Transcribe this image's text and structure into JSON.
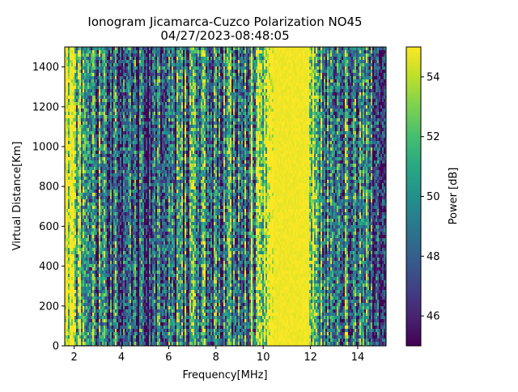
{
  "chart_data": {
    "type": "heatmap",
    "title": "Ionogram Jicamarca-Cuzco Polarization NO45",
    "subtitle": "04/27/2023-08:48:05",
    "xlabel": "Frequency[MHz]",
    "ylabel": "Virtual Distance[Km]",
    "xlim": [
      1.6,
      15.2
    ],
    "ylim": [
      0,
      1500
    ],
    "x_ticks": [
      2,
      4,
      6,
      8,
      10,
      12,
      14
    ],
    "y_ticks": [
      0,
      200,
      400,
      600,
      800,
      1000,
      1200,
      1400
    ],
    "colorbar": {
      "label": "Power [dB]",
      "range": [
        45,
        55
      ],
      "ticks": [
        46,
        48,
        50,
        52,
        54
      ],
      "colormap": "viridis"
    },
    "grid": false,
    "saturated_band_mhz": [
      10.4,
      11.9
    ],
    "frequency_profile": [
      {
        "x": 1.6,
        "power_db": 54
      },
      {
        "x": 2.3,
        "power_db": 52
      },
      {
        "x": 2.8,
        "power_db": 49
      },
      {
        "x": 3.3,
        "power_db": 50
      },
      {
        "x": 4.0,
        "power_db": 47
      },
      {
        "x": 5.0,
        "power_db": 46.5
      },
      {
        "x": 6.0,
        "power_db": 48
      },
      {
        "x": 7.0,
        "power_db": 50
      },
      {
        "x": 8.0,
        "power_db": 49
      },
      {
        "x": 9.0,
        "power_db": 50
      },
      {
        "x": 9.8,
        "power_db": 52
      },
      {
        "x": 10.4,
        "power_db": 55
      },
      {
        "x": 11.9,
        "power_db": 55
      },
      {
        "x": 12.3,
        "power_db": 51
      },
      {
        "x": 13.0,
        "power_db": 49
      },
      {
        "x": 14.0,
        "power_db": 49
      },
      {
        "x": 15.2,
        "power_db": 47
      }
    ]
  }
}
